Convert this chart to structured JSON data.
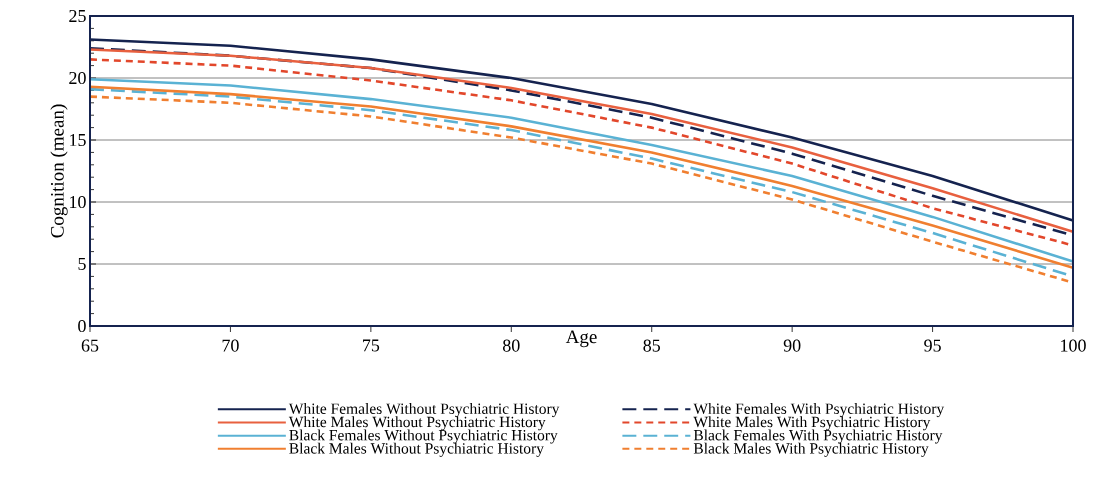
{
  "chart_data": {
    "type": "line",
    "xlabel": "Age",
    "ylabel": "Cognition (mean)",
    "x": [
      65,
      70,
      75,
      80,
      85,
      90,
      95,
      100
    ],
    "xlim": [
      65,
      100
    ],
    "xticks": [
      65,
      70,
      75,
      80,
      85,
      90,
      95,
      100
    ],
    "ylim": [
      0,
      25
    ],
    "yticks": [
      0,
      5,
      10,
      15,
      20,
      25
    ],
    "grid": "y",
    "legend": "bottom",
    "marker": "none",
    "series": [
      {
        "name": "White Females Without Psychiatric History",
        "color": "#15234f",
        "line_style": "solid",
        "values": [
          23.1,
          22.6,
          21.5,
          20.0,
          17.9,
          15.2,
          12.1,
          8.5
        ]
      },
      {
        "name": "White Females With Psychiatric History",
        "color": "#15234f",
        "line_style": "dashed",
        "values": [
          22.4,
          21.8,
          20.8,
          19.0,
          16.8,
          13.9,
          10.5,
          7.3
        ]
      },
      {
        "name": "White Males Without Psychiatric History",
        "color": "#e8603f",
        "line_style": "solid",
        "values": [
          22.3,
          21.8,
          20.8,
          19.2,
          17.1,
          14.4,
          11.1,
          7.6
        ]
      },
      {
        "name": "White Males With Psychiatric History",
        "color": "#e2472b",
        "line_style": "dotted",
        "values": [
          21.5,
          21.0,
          19.8,
          18.2,
          16.0,
          13.1,
          9.5,
          6.5
        ]
      },
      {
        "name": "Black Females Without Psychiatric History",
        "color": "#5ab2d4",
        "line_style": "solid",
        "values": [
          19.9,
          19.4,
          18.3,
          16.8,
          14.6,
          12.1,
          8.8,
          5.2
        ]
      },
      {
        "name": "Black Females With Psychiatric History",
        "color": "#5ab2d4",
        "line_style": "dashed",
        "values": [
          19.1,
          18.5,
          17.4,
          15.8,
          13.5,
          10.8,
          7.5,
          4.0
        ]
      },
      {
        "name": "Black Males Without Psychiatric History",
        "color": "#f07f30",
        "line_style": "solid",
        "values": [
          19.3,
          18.7,
          17.7,
          16.1,
          14.0,
          11.3,
          8.1,
          4.7
        ]
      },
      {
        "name": "Black Males With Psychiatric History",
        "color": "#f07f30",
        "line_style": "dotted",
        "values": [
          18.5,
          18.0,
          16.9,
          15.2,
          13.1,
          10.2,
          6.8,
          3.5
        ]
      }
    ]
  }
}
